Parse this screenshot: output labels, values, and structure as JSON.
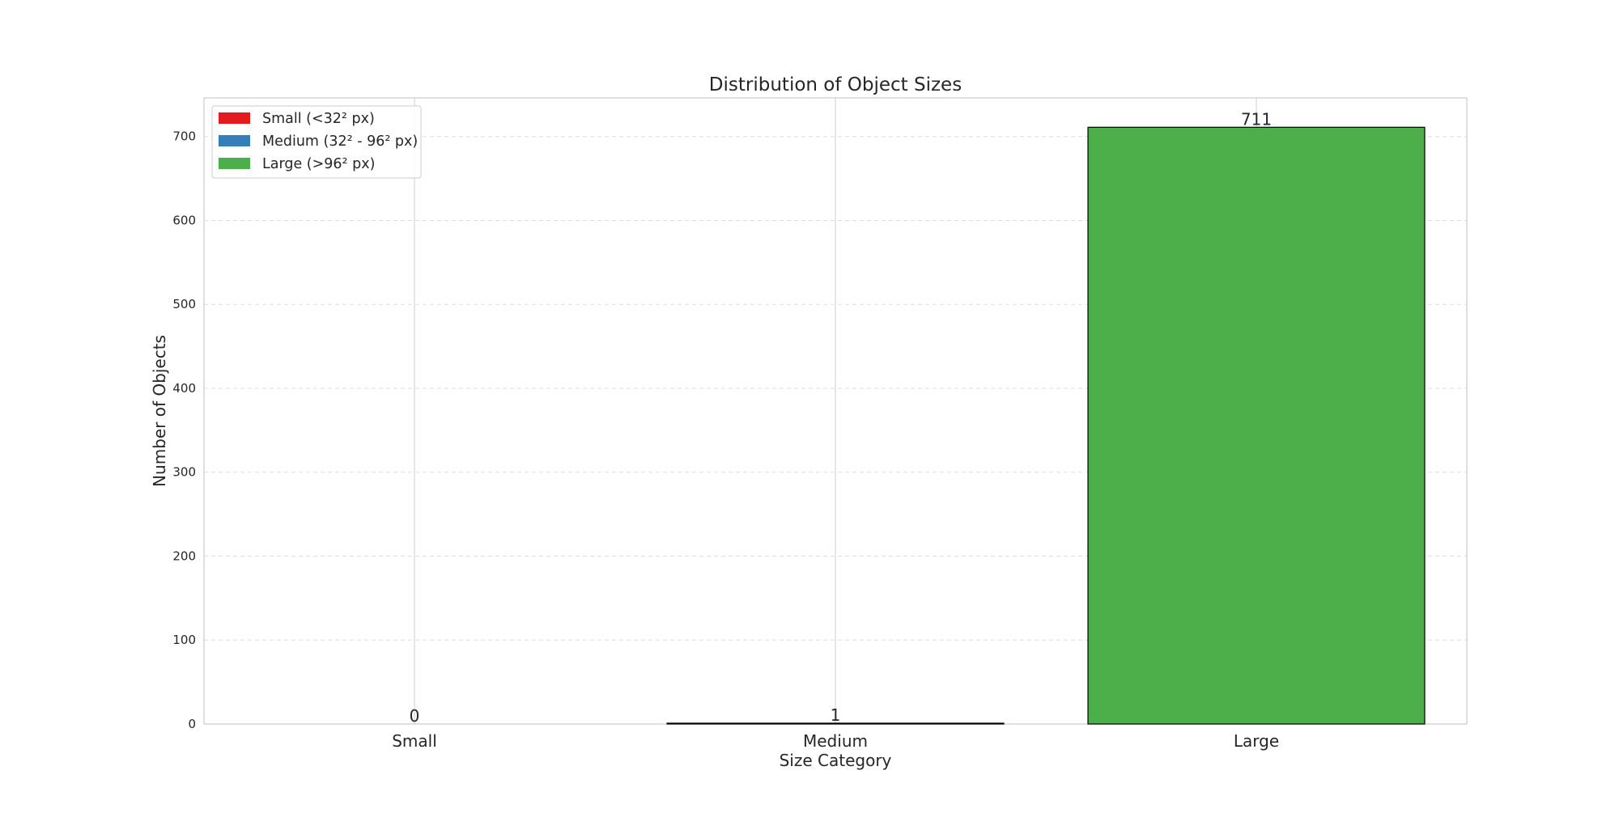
{
  "chart_data": {
    "type": "bar",
    "title": "Distribution of Object Sizes",
    "xlabel": "Size Category",
    "ylabel": "Number of Objects",
    "categories": [
      "Small",
      "Medium",
      "Large"
    ],
    "values": [
      0,
      1,
      711
    ],
    "data_labels": [
      "0",
      "1",
      "711"
    ],
    "colors": [
      "#e41a1c",
      "#377eb8",
      "#4daf4a"
    ],
    "ylim": [
      0,
      746
    ],
    "yticks": [
      0,
      100,
      200,
      300,
      400,
      500,
      600,
      700
    ],
    "ytick_labels": [
      "0",
      "100",
      "200",
      "300",
      "400",
      "500",
      "600",
      "700"
    ],
    "grid": true,
    "legend": {
      "placement": "top-left",
      "entries": [
        {
          "label": "Small (<32² px)",
          "color": "#e41a1c"
        },
        {
          "label": "Medium (32² - 96² px)",
          "color": "#377eb8"
        },
        {
          "label": "Large (>96² px)",
          "color": "#4daf4a"
        }
      ]
    }
  }
}
